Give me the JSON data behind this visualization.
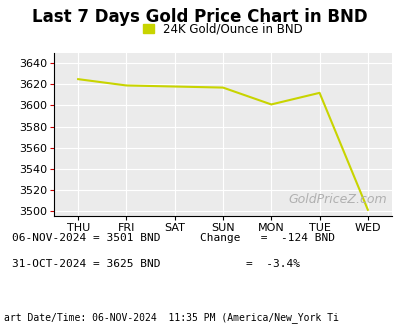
{
  "title": "Last 7 Days Gold Price Chart in BND",
  "legend_label": "24K Gold/Ounce in BND",
  "x_labels": [
    "THU",
    "FRI",
    "SAT",
    "SUN",
    "MON",
    "TUE",
    "WED"
  ],
  "y_values": [
    3625,
    3619,
    3618,
    3617,
    3601,
    3612,
    3501
  ],
  "line_color": "#c8d400",
  "ylim_min": 3495,
  "ylim_max": 3650,
  "yticks": [
    3500,
    3520,
    3540,
    3560,
    3580,
    3600,
    3620,
    3640
  ],
  "watermark": "GoldPriceZ.com",
  "footer_line1": "06-NOV-2024 = 3501 BND",
  "footer_line2": "31-OCT-2024 = 3625 BND",
  "footer_change_label": "Change",
  "footer_change_val": "=  -124 BND",
  "footer_pct_val": "=  -3.4%",
  "footer_datetime": "art Date/Time: 06-NOV-2024  11:35 PM (America/New_York Ti",
  "bg_color": "#ffffff",
  "plot_bg_color": "#ebebeb",
  "grid_color": "#ffffff",
  "tick_color": "#cc0000",
  "title_fontsize": 12,
  "axis_fontsize": 8,
  "legend_fontsize": 8.5,
  "footer_fontsize": 8,
  "watermark_fontsize": 9,
  "datetime_fontsize": 7
}
